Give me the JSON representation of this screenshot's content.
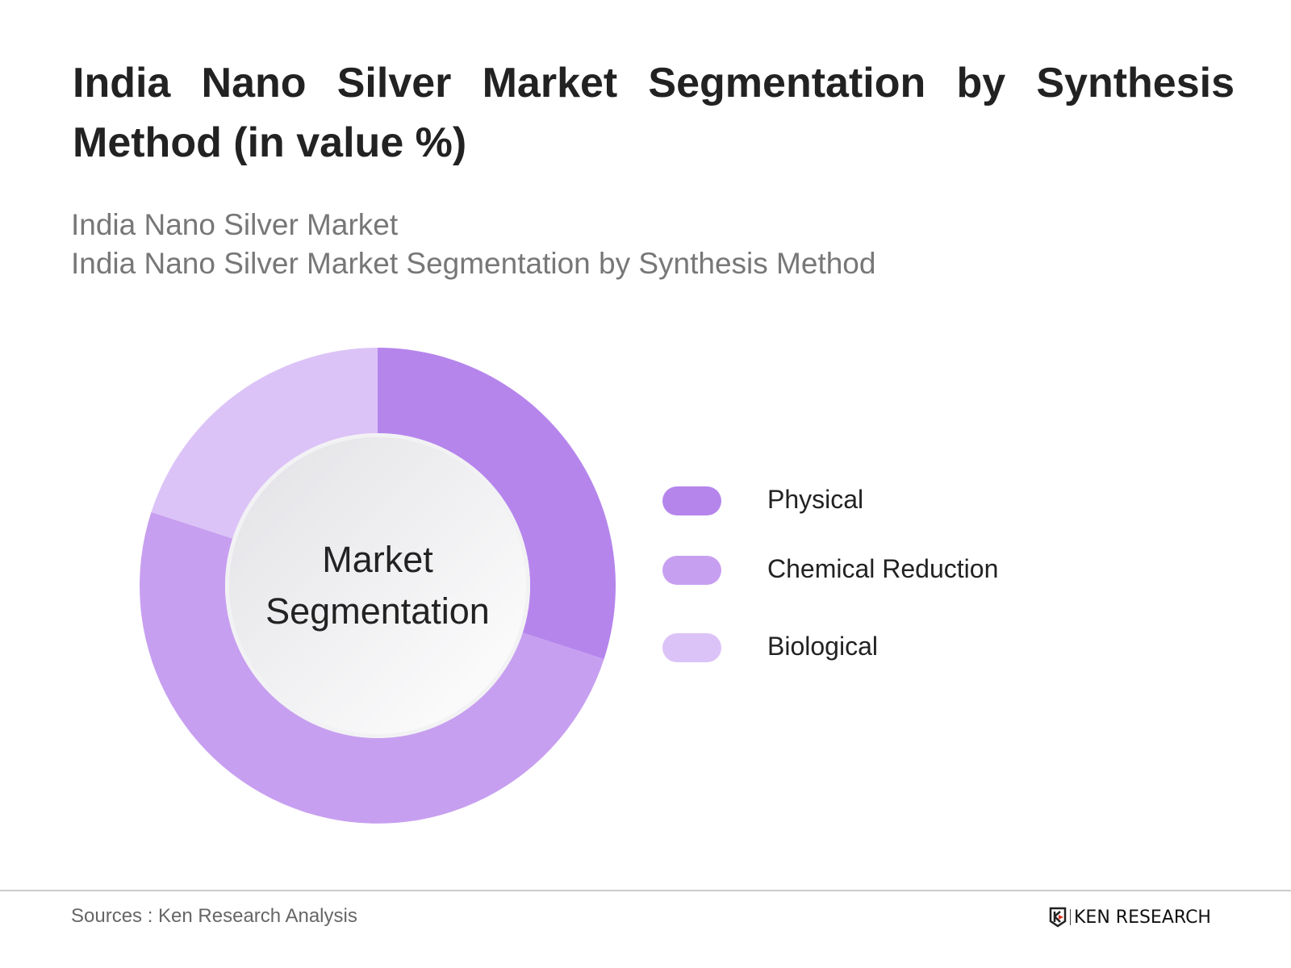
{
  "header": {
    "title": "India Nano Silver Market Segmentation by Synthesis Method (in value %)",
    "subtitle_1": "India Nano Silver Market",
    "subtitle_2": "India Nano Silver Market Segmentation by Synthesis Method"
  },
  "chart_data": {
    "type": "pie",
    "variant": "donut",
    "title": "India Nano Silver Market Segmentation by Synthesis Method (in value %)",
    "center_label": "Market Segmentation",
    "categories": [
      "Physical",
      "Chemical Reduction",
      "Biological"
    ],
    "values": [
      30,
      50,
      20
    ],
    "colors": [
      "#b585ec",
      "#c79ff0",
      "#dcc3f7"
    ],
    "legend_position": "right"
  },
  "footer": {
    "source": "Sources : Ken Research Analysis",
    "logo_text": "KEN RESEARCH"
  }
}
